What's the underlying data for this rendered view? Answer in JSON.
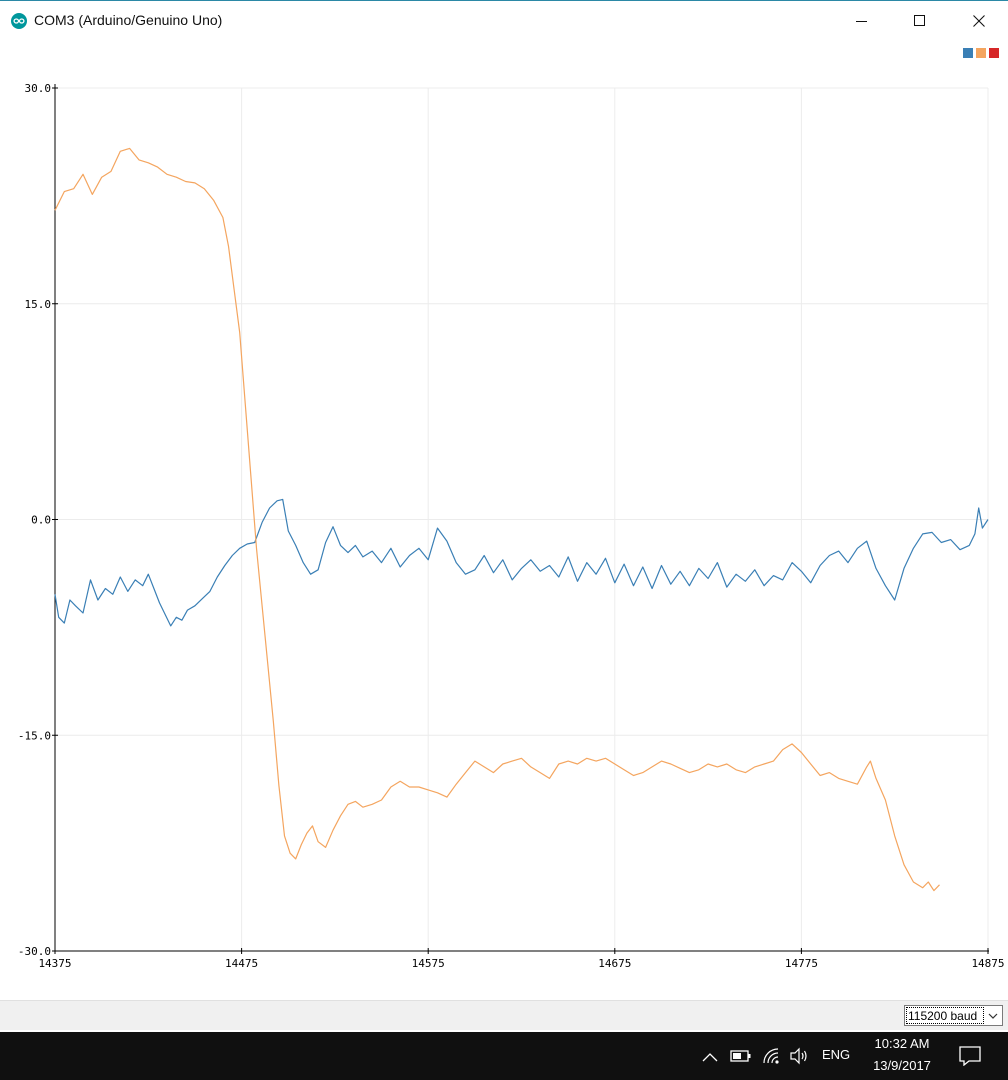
{
  "window": {
    "title": "COM3 (Arduino/Genuino Uno)",
    "app_icon": "arduino-icon"
  },
  "legend": {
    "colors": [
      "#3a7fb5",
      "#f4a55f",
      "#d62728"
    ]
  },
  "chart_data": {
    "type": "line",
    "xlim": [
      14375,
      14875
    ],
    "ylim": [
      -30,
      30
    ],
    "x_ticks": [
      14375,
      14475,
      14575,
      14675,
      14775,
      14875
    ],
    "y_ticks": [
      30.0,
      15.0,
      0.0,
      -15.0,
      -30.0
    ],
    "x_tick_labels": [
      "14375",
      "14475",
      "14575",
      "14675",
      "14775",
      "14875"
    ],
    "y_tick_labels": [
      "30.0",
      "15.0",
      "0.0",
      "-15.0",
      "-30.0"
    ],
    "grid": true,
    "series": [
      {
        "color": "#3a7fb5",
        "points": [
          [
            14375,
            -5.2
          ],
          [
            14377,
            -6.8
          ],
          [
            14380,
            -7.2
          ],
          [
            14383,
            -5.6
          ],
          [
            14386,
            -6.0
          ],
          [
            14390,
            -6.5
          ],
          [
            14394,
            -4.2
          ],
          [
            14398,
            -5.6
          ],
          [
            14402,
            -4.8
          ],
          [
            14406,
            -5.2
          ],
          [
            14410,
            -4.0
          ],
          [
            14414,
            -5.0
          ],
          [
            14418,
            -4.2
          ],
          [
            14422,
            -4.6
          ],
          [
            14425,
            -3.8
          ],
          [
            14428,
            -4.8
          ],
          [
            14431,
            -5.8
          ],
          [
            14434,
            -6.6
          ],
          [
            14437,
            -7.4
          ],
          [
            14440,
            -6.8
          ],
          [
            14443,
            -7.0
          ],
          [
            14446,
            -6.3
          ],
          [
            14450,
            -6.0
          ],
          [
            14454,
            -5.5
          ],
          [
            14458,
            -5.0
          ],
          [
            14462,
            -4.0
          ],
          [
            14466,
            -3.2
          ],
          [
            14470,
            -2.5
          ],
          [
            14474,
            -2.0
          ],
          [
            14478,
            -1.7
          ],
          [
            14482,
            -1.6
          ],
          [
            14486,
            -0.2
          ],
          [
            14490,
            0.8
          ],
          [
            14494,
            1.3
          ],
          [
            14497,
            1.4
          ],
          [
            14500,
            -0.8
          ],
          [
            14504,
            -1.8
          ],
          [
            14508,
            -3.0
          ],
          [
            14512,
            -3.8
          ],
          [
            14516,
            -3.5
          ],
          [
            14520,
            -1.6
          ],
          [
            14524,
            -0.5
          ],
          [
            14528,
            -1.8
          ],
          [
            14532,
            -2.3
          ],
          [
            14536,
            -1.8
          ],
          [
            14540,
            -2.6
          ],
          [
            14545,
            -2.2
          ],
          [
            14550,
            -3.0
          ],
          [
            14555,
            -2.0
          ],
          [
            14560,
            -3.3
          ],
          [
            14565,
            -2.5
          ],
          [
            14570,
            -2.0
          ],
          [
            14575,
            -2.8
          ],
          [
            14580,
            -0.6
          ],
          [
            14585,
            -1.5
          ],
          [
            14590,
            -3.0
          ],
          [
            14595,
            -3.8
          ],
          [
            14600,
            -3.5
          ],
          [
            14605,
            -2.5
          ],
          [
            14610,
            -3.7
          ],
          [
            14615,
            -2.8
          ],
          [
            14620,
            -4.2
          ],
          [
            14625,
            -3.4
          ],
          [
            14630,
            -2.8
          ],
          [
            14635,
            -3.6
          ],
          [
            14640,
            -3.2
          ],
          [
            14645,
            -4.0
          ],
          [
            14650,
            -2.6
          ],
          [
            14655,
            -4.3
          ],
          [
            14660,
            -3.0
          ],
          [
            14665,
            -3.8
          ],
          [
            14670,
            -2.7
          ],
          [
            14675,
            -4.4
          ],
          [
            14680,
            -3.1
          ],
          [
            14685,
            -4.6
          ],
          [
            14690,
            -3.3
          ],
          [
            14695,
            -4.8
          ],
          [
            14700,
            -3.2
          ],
          [
            14705,
            -4.5
          ],
          [
            14710,
            -3.6
          ],
          [
            14715,
            -4.6
          ],
          [
            14720,
            -3.4
          ],
          [
            14725,
            -4.1
          ],
          [
            14730,
            -3.0
          ],
          [
            14735,
            -4.7
          ],
          [
            14740,
            -3.8
          ],
          [
            14745,
            -4.3
          ],
          [
            14750,
            -3.5
          ],
          [
            14755,
            -4.6
          ],
          [
            14760,
            -3.9
          ],
          [
            14765,
            -4.2
          ],
          [
            14770,
            -3.0
          ],
          [
            14775,
            -3.6
          ],
          [
            14780,
            -4.4
          ],
          [
            14785,
            -3.2
          ],
          [
            14790,
            -2.5
          ],
          [
            14795,
            -2.2
          ],
          [
            14800,
            -3.0
          ],
          [
            14805,
            -2.0
          ],
          [
            14810,
            -1.5
          ],
          [
            14815,
            -3.4
          ],
          [
            14820,
            -4.6
          ],
          [
            14825,
            -5.6
          ],
          [
            14830,
            -3.4
          ],
          [
            14835,
            -2.0
          ],
          [
            14840,
            -1.0
          ],
          [
            14845,
            -0.9
          ],
          [
            14850,
            -1.6
          ],
          [
            14855,
            -1.4
          ],
          [
            14860,
            -2.1
          ],
          [
            14865,
            -1.8
          ],
          [
            14868,
            -1.0
          ],
          [
            14870,
            0.8
          ],
          [
            14872,
            -0.6
          ],
          [
            14875,
            0.0
          ]
        ]
      },
      {
        "color": "#f4a55f",
        "points": [
          [
            14375,
            21.5
          ],
          [
            14380,
            22.8
          ],
          [
            14385,
            23.0
          ],
          [
            14390,
            24.0
          ],
          [
            14395,
            22.6
          ],
          [
            14400,
            23.8
          ],
          [
            14405,
            24.2
          ],
          [
            14410,
            25.6
          ],
          [
            14415,
            25.8
          ],
          [
            14420,
            25.0
          ],
          [
            14425,
            24.8
          ],
          [
            14430,
            24.5
          ],
          [
            14435,
            24.0
          ],
          [
            14440,
            23.8
          ],
          [
            14445,
            23.5
          ],
          [
            14450,
            23.4
          ],
          [
            14455,
            23.0
          ],
          [
            14460,
            22.2
          ],
          [
            14465,
            21.0
          ],
          [
            14468,
            19.0
          ],
          [
            14471,
            16.0
          ],
          [
            14474,
            13.0
          ],
          [
            14477,
            8.0
          ],
          [
            14480,
            3.0
          ],
          [
            14483,
            -2.0
          ],
          [
            14486,
            -6.0
          ],
          [
            14489,
            -10.0
          ],
          [
            14492,
            -14.0
          ],
          [
            14495,
            -18.5
          ],
          [
            14498,
            -22.0
          ],
          [
            14501,
            -23.2
          ],
          [
            14504,
            -23.6
          ],
          [
            14507,
            -22.6
          ],
          [
            14510,
            -21.8
          ],
          [
            14513,
            -21.3
          ],
          [
            14516,
            -22.4
          ],
          [
            14520,
            -22.8
          ],
          [
            14524,
            -21.6
          ],
          [
            14528,
            -20.6
          ],
          [
            14532,
            -19.8
          ],
          [
            14536,
            -19.6
          ],
          [
            14540,
            -20.0
          ],
          [
            14545,
            -19.8
          ],
          [
            14550,
            -19.5
          ],
          [
            14555,
            -18.6
          ],
          [
            14560,
            -18.2
          ],
          [
            14565,
            -18.6
          ],
          [
            14570,
            -18.6
          ],
          [
            14575,
            -18.8
          ],
          [
            14580,
            -19.0
          ],
          [
            14585,
            -19.3
          ],
          [
            14590,
            -18.4
          ],
          [
            14595,
            -17.6
          ],
          [
            14600,
            -16.8
          ],
          [
            14605,
            -17.2
          ],
          [
            14610,
            -17.6
          ],
          [
            14615,
            -17.0
          ],
          [
            14620,
            -16.8
          ],
          [
            14625,
            -16.6
          ],
          [
            14630,
            -17.2
          ],
          [
            14635,
            -17.6
          ],
          [
            14640,
            -18.0
          ],
          [
            14645,
            -17.0
          ],
          [
            14650,
            -16.8
          ],
          [
            14655,
            -17.0
          ],
          [
            14660,
            -16.6
          ],
          [
            14665,
            -16.8
          ],
          [
            14670,
            -16.6
          ],
          [
            14675,
            -17.0
          ],
          [
            14680,
            -17.4
          ],
          [
            14685,
            -17.8
          ],
          [
            14690,
            -17.6
          ],
          [
            14695,
            -17.2
          ],
          [
            14700,
            -16.8
          ],
          [
            14705,
            -17.0
          ],
          [
            14710,
            -17.3
          ],
          [
            14715,
            -17.6
          ],
          [
            14720,
            -17.4
          ],
          [
            14725,
            -17.0
          ],
          [
            14730,
            -17.2
          ],
          [
            14735,
            -17.0
          ],
          [
            14740,
            -17.4
          ],
          [
            14745,
            -17.6
          ],
          [
            14750,
            -17.2
          ],
          [
            14755,
            -17.0
          ],
          [
            14760,
            -16.8
          ],
          [
            14765,
            -16.0
          ],
          [
            14770,
            -15.6
          ],
          [
            14775,
            -16.2
          ],
          [
            14780,
            -17.0
          ],
          [
            14785,
            -17.8
          ],
          [
            14790,
            -17.6
          ],
          [
            14795,
            -18.0
          ],
          [
            14800,
            -18.2
          ],
          [
            14805,
            -18.4
          ],
          [
            14810,
            -17.2
          ],
          [
            14812,
            -16.8
          ],
          [
            14815,
            -18.0
          ],
          [
            14820,
            -19.5
          ],
          [
            14825,
            -22.0
          ],
          [
            14830,
            -24.0
          ],
          [
            14835,
            -25.2
          ],
          [
            14840,
            -25.6
          ],
          [
            14843,
            -25.2
          ],
          [
            14846,
            -25.8
          ],
          [
            14849,
            -25.4
          ]
        ]
      }
    ]
  },
  "serial": {
    "baud_label": "115200 baud"
  },
  "taskbar": {
    "lang": "ENG",
    "time": "10:32 AM",
    "date": "13/9/2017"
  }
}
